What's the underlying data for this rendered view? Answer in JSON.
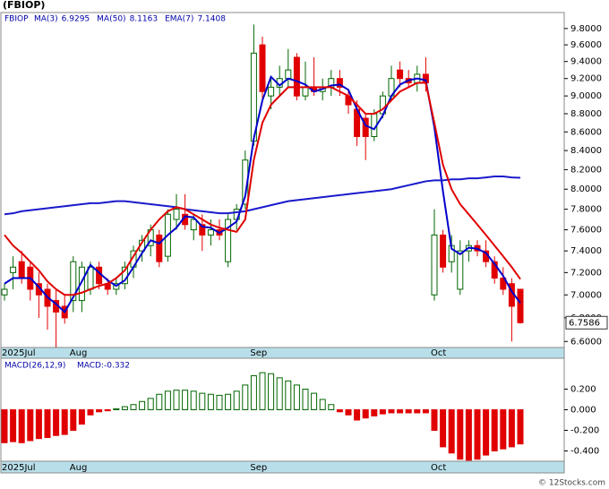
{
  "chart_data": [
    {
      "type": "candlestick",
      "title": "(FBIOP)",
      "symbol": "FBIOP",
      "categories": [
        "2025Jul",
        null,
        null,
        null,
        null,
        null,
        null,
        null,
        "Aug",
        null,
        null,
        null,
        null,
        null,
        null,
        null,
        null,
        null,
        null,
        null,
        null,
        null,
        null,
        null,
        null,
        null,
        null,
        null,
        null,
        "Sep",
        null,
        null,
        null,
        null,
        null,
        null,
        null,
        null,
        null,
        null,
        null,
        null,
        null,
        null,
        null,
        null,
        null,
        null,
        null,
        null,
        "Oct",
        null,
        null,
        null,
        null,
        null,
        null,
        null,
        null,
        null,
        null
      ],
      "open": [
        7.0,
        7.2,
        7.3,
        7.25,
        7.1,
        7.05,
        6.95,
        6.9,
        6.95,
        6.95,
        7.05,
        7.25,
        7.1,
        7.05,
        7.1,
        7.25,
        7.4,
        7.45,
        7.55,
        7.35,
        7.7,
        7.75,
        7.6,
        7.65,
        7.55,
        7.6,
        7.3,
        7.7,
        7.85,
        8.5,
        9.6,
        9.0,
        9.1,
        9.2,
        9.45,
        9.0,
        9.1,
        9.05,
        9.1,
        9.2,
        9.0,
        8.85,
        8.75,
        8.55,
        8.8,
        9.0,
        9.3,
        9.2,
        9.15,
        9.25,
        7.0,
        7.55,
        7.3,
        7.05,
        7.4,
        7.45,
        7.4,
        7.3,
        7.15,
        7.1,
        7.05
      ],
      "high": [
        7.1,
        7.35,
        7.4,
        7.3,
        7.2,
        7.1,
        7.05,
        7.0,
        7.35,
        7.3,
        7.3,
        7.3,
        7.15,
        7.15,
        7.3,
        7.45,
        7.55,
        7.65,
        7.6,
        7.8,
        7.95,
        7.95,
        7.75,
        7.75,
        7.7,
        7.7,
        7.75,
        7.85,
        8.4,
        9.85,
        9.7,
        9.2,
        9.35,
        9.55,
        9.5,
        9.4,
        9.45,
        9.2,
        9.3,
        9.3,
        9.05,
        8.95,
        8.8,
        8.85,
        9.05,
        9.35,
        9.4,
        9.3,
        9.35,
        9.45,
        7.8,
        7.6,
        7.55,
        7.5,
        7.5,
        7.5,
        7.5,
        7.35,
        7.25,
        7.15,
        7.05
      ],
      "low": [
        6.95,
        7.05,
        7.1,
        6.95,
        6.8,
        6.7,
        6.55,
        6.75,
        6.85,
        6.85,
        7.0,
        7.05,
        7.0,
        7.0,
        7.05,
        7.15,
        7.3,
        7.35,
        7.25,
        7.3,
        7.6,
        7.6,
        7.5,
        7.4,
        7.45,
        7.5,
        7.25,
        7.6,
        7.8,
        8.45,
        8.95,
        8.85,
        9.0,
        9.1,
        8.95,
        8.95,
        9.0,
        8.95,
        9.0,
        9.0,
        8.8,
        8.45,
        8.3,
        8.5,
        8.75,
        8.95,
        9.1,
        9.1,
        9.05,
        9.05,
        6.95,
        7.2,
        7.2,
        7.0,
        7.3,
        7.35,
        7.25,
        7.1,
        7.0,
        6.6,
        6.75
      ],
      "close": [
        7.05,
        7.25,
        7.15,
        7.05,
        7.0,
        6.9,
        6.85,
        6.8,
        7.3,
        7.25,
        7.25,
        7.1,
        7.05,
        7.1,
        7.25,
        7.4,
        7.5,
        7.6,
        7.3,
        7.75,
        7.8,
        7.65,
        7.7,
        7.55,
        7.6,
        7.55,
        7.7,
        7.8,
        8.3,
        9.5,
        9.05,
        9.1,
        9.2,
        9.3,
        9.0,
        9.1,
        9.05,
        9.1,
        9.2,
        9.1,
        8.9,
        8.55,
        8.55,
        8.8,
        9.0,
        9.2,
        9.2,
        9.15,
        9.25,
        9.15,
        7.55,
        7.25,
        7.45,
        7.4,
        7.45,
        7.4,
        7.3,
        7.15,
        7.05,
        6.9,
        6.7586
      ],
      "up_color": "#006600",
      "down_color": "#e00000",
      "series": [
        {
          "name": "MA(3)",
          "color": "#0000cc",
          "values": [
            7.1,
            7.15,
            7.15,
            7.15,
            7.07,
            6.98,
            6.92,
            6.85,
            6.98,
            7.12,
            7.27,
            7.2,
            7.13,
            7.08,
            7.13,
            7.25,
            7.38,
            7.5,
            7.47,
            7.55,
            7.62,
            7.73,
            7.72,
            7.63,
            7.62,
            7.57,
            7.62,
            7.68,
            7.93,
            8.53,
            8.95,
            9.22,
            9.12,
            9.2,
            9.17,
            9.13,
            9.05,
            9.08,
            9.12,
            9.13,
            9.07,
            8.85,
            8.67,
            8.63,
            8.78,
            9.0,
            9.13,
            9.18,
            9.2,
            9.18,
            8.65,
            7.98,
            7.42,
            7.37,
            7.43,
            7.42,
            7.38,
            7.28,
            7.17,
            7.03,
            6.9295
          ]
        },
        {
          "name": "MA(50)",
          "color": "#1a1acc",
          "values": [
            7.75,
            7.76,
            7.78,
            7.79,
            7.8,
            7.81,
            7.82,
            7.83,
            7.84,
            7.85,
            7.86,
            7.86,
            7.87,
            7.88,
            7.88,
            7.87,
            7.86,
            7.85,
            7.84,
            7.83,
            7.82,
            7.8,
            7.79,
            7.78,
            7.77,
            7.76,
            7.76,
            7.77,
            7.78,
            7.8,
            7.82,
            7.84,
            7.86,
            7.88,
            7.89,
            7.9,
            7.91,
            7.92,
            7.93,
            7.94,
            7.95,
            7.96,
            7.97,
            7.98,
            7.99,
            8.0,
            8.02,
            8.04,
            8.06,
            8.08,
            8.09,
            8.09,
            8.1,
            8.1,
            8.11,
            8.11,
            8.12,
            8.13,
            8.13,
            8.12,
            8.1163
          ]
        },
        {
          "name": "EMA(7)",
          "color": "#e00000",
          "values": [
            7.55,
            7.45,
            7.38,
            7.3,
            7.22,
            7.12,
            7.05,
            7.0,
            7.0,
            7.02,
            7.05,
            7.08,
            7.1,
            7.15,
            7.22,
            7.35,
            7.48,
            7.6,
            7.7,
            7.78,
            7.82,
            7.8,
            7.75,
            7.7,
            7.65,
            7.62,
            7.6,
            7.58,
            7.7,
            8.3,
            8.7,
            8.9,
            9.0,
            9.1,
            9.1,
            9.1,
            9.1,
            9.1,
            9.1,
            9.05,
            9.0,
            8.9,
            8.8,
            8.8,
            8.85,
            8.95,
            9.05,
            9.1,
            9.15,
            9.15,
            8.7,
            8.25,
            8.0,
            7.85,
            7.75,
            7.65,
            7.55,
            7.45,
            7.35,
            7.25,
            7.1408
          ]
        }
      ],
      "ylim": [
        6.55,
        10.0
      ],
      "log_scale": true,
      "yticks": [
        {
          "value": 9.8,
          "label": "9.8000"
        },
        {
          "value": 9.6,
          "label": "9.6000"
        },
        {
          "value": 9.4,
          "label": "9.4000"
        },
        {
          "value": 9.2,
          "label": "9.2000"
        },
        {
          "value": 9.0,
          "label": "9.0000"
        },
        {
          "value": 8.8,
          "label": "8.8000"
        },
        {
          "value": 8.6,
          "label": "8.6000"
        },
        {
          "value": 8.4,
          "label": "8.4000"
        },
        {
          "value": 8.2,
          "label": "8.2000"
        },
        {
          "value": 8.0,
          "label": "8.0000"
        },
        {
          "value": 7.8,
          "label": "7.8000"
        },
        {
          "value": 7.6,
          "label": "7.6000"
        },
        {
          "value": 7.4,
          "label": "7.4000"
        },
        {
          "value": 7.2,
          "label": "7.2000"
        },
        {
          "value": 7.0,
          "label": "7.0000"
        },
        {
          "value": 6.8,
          "label": "6.8000"
        },
        {
          "value": 6.6,
          "label": "6.6000"
        }
      ]
    },
    {
      "type": "bar",
      "title": "MACD(26,12,9)",
      "value_name": "MACD:",
      "categories": [
        "2025Jul",
        null,
        null,
        null,
        null,
        null,
        null,
        null,
        "Aug",
        null,
        null,
        null,
        null,
        null,
        null,
        null,
        null,
        null,
        null,
        null,
        null,
        null,
        null,
        null,
        null,
        null,
        null,
        null,
        null,
        "Sep",
        null,
        null,
        null,
        null,
        null,
        null,
        null,
        null,
        null,
        null,
        null,
        null,
        null,
        null,
        null,
        null,
        null,
        null,
        null,
        null,
        "Oct",
        null,
        null,
        null,
        null,
        null,
        null,
        null,
        null,
        null,
        null
      ],
      "values": [
        -0.32,
        -0.31,
        -0.32,
        -0.3,
        -0.28,
        -0.27,
        -0.25,
        -0.24,
        -0.2,
        -0.14,
        -0.05,
        -0.02,
        -0.01,
        0.01,
        0.03,
        0.05,
        0.08,
        0.11,
        0.15,
        0.18,
        0.19,
        0.19,
        0.18,
        0.16,
        0.15,
        0.14,
        0.15,
        0.18,
        0.24,
        0.33,
        0.36,
        0.35,
        0.31,
        0.28,
        0.24,
        0.2,
        0.16,
        0.1,
        0.05,
        -0.02,
        -0.05,
        -0.1,
        -0.08,
        -0.06,
        -0.04,
        -0.03,
        -0.03,
        -0.03,
        -0.03,
        -0.03,
        -0.2,
        -0.36,
        -0.42,
        -0.48,
        -0.49,
        -0.48,
        -0.44,
        -0.4,
        -0.38,
        -0.36,
        -0.332
      ],
      "up_color": "#006600",
      "down_color": "#e00000",
      "ylim": [
        -0.5,
        0.5
      ],
      "yticks": [
        {
          "value": 0.2,
          "label": "0.200"
        },
        {
          "value": 0.0,
          "label": "0.000"
        },
        {
          "value": -0.2,
          "label": "-0.200"
        },
        {
          "value": -0.4,
          "label": "-0.400"
        }
      ]
    }
  ],
  "footer": "© 12Stocks.com"
}
